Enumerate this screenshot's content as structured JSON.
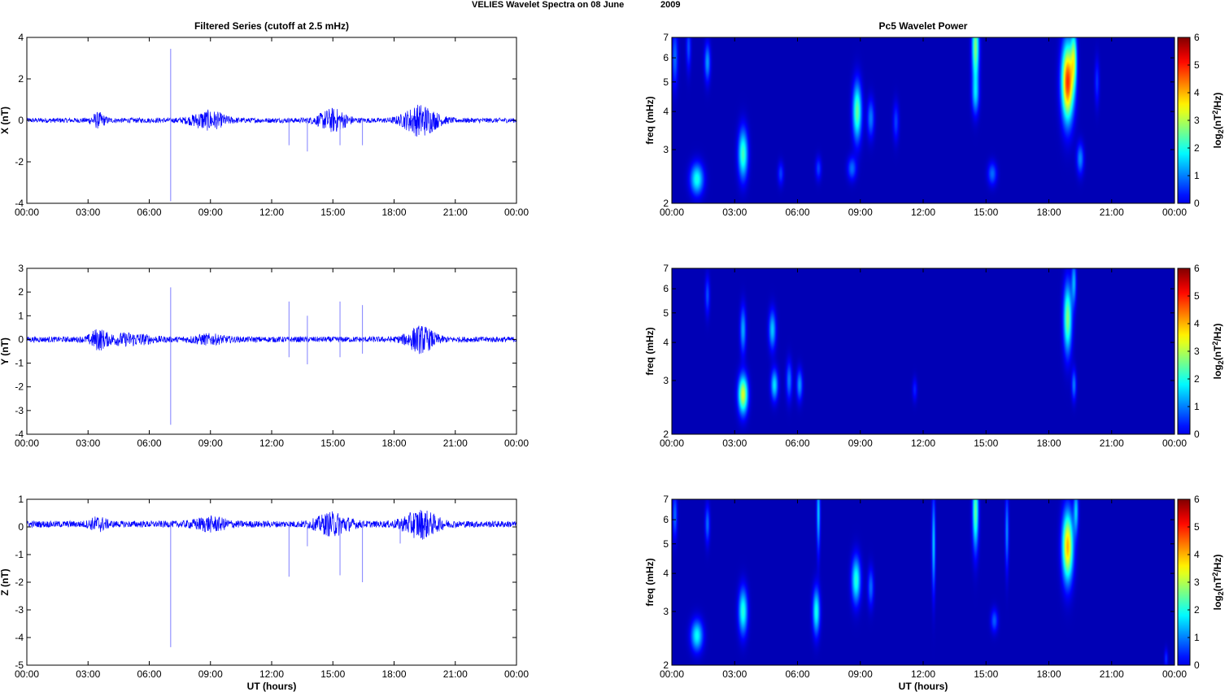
{
  "figure": {
    "suptitle_left": "VELIES Wavelet Spectra on 08 June",
    "suptitle_right": "2009"
  },
  "colors": {
    "trace": "#0000ff",
    "spectrogram_background": "#00008f",
    "colormap": "jet"
  },
  "chart_data": [
    {
      "type": "line",
      "panel": "left-top",
      "title": "Filtered Series (cutoff at 2.5 mHz)",
      "xlabel": "",
      "ylabel": "X (nT)",
      "xlim_hours": [
        0,
        24
      ],
      "ylim": [
        -4,
        4
      ],
      "x_ticks": [
        "00:00",
        "03:00",
        "06:00",
        "09:00",
        "12:00",
        "15:00",
        "18:00",
        "21:00",
        "00:00"
      ],
      "y_ticks": [
        4,
        2,
        0,
        -2,
        -4
      ],
      "baseline_noise_amplitude": 0.12,
      "bursts": [
        {
          "t": 3.5,
          "amp": 0.3,
          "width": 0.25
        },
        {
          "t": 8.9,
          "amp": 0.4,
          "width": 0.6
        },
        {
          "t": 15.0,
          "amp": 0.5,
          "width": 0.5
        },
        {
          "t": 19.3,
          "amp": 0.7,
          "width": 0.6
        }
      ],
      "spikes": [
        {
          "t": 7.05,
          "max": 3.45,
          "min": -3.9
        },
        {
          "t": 12.85,
          "max": 0.1,
          "min": -1.2
        },
        {
          "t": 13.75,
          "max": 0.1,
          "min": -1.5
        },
        {
          "t": 15.35,
          "max": 0.1,
          "min": -1.2
        },
        {
          "t": 16.45,
          "max": 0.1,
          "min": -1.2
        }
      ]
    },
    {
      "type": "line",
      "panel": "left-middle",
      "title": "",
      "xlabel": "",
      "ylabel": "Y (nT)",
      "xlim_hours": [
        0,
        24
      ],
      "ylim": [
        -4,
        3
      ],
      "x_ticks": [
        "00:00",
        "03:00",
        "06:00",
        "09:00",
        "12:00",
        "15:00",
        "18:00",
        "21:00",
        "00:00"
      ],
      "y_ticks": [
        3,
        2,
        1,
        0,
        -1,
        -2,
        -3,
        -4
      ],
      "baseline_noise_amplitude": 0.12,
      "bursts": [
        {
          "t": 3.5,
          "amp": 0.35,
          "width": 0.3
        },
        {
          "t": 5.0,
          "amp": 0.2,
          "width": 0.8
        },
        {
          "t": 8.9,
          "amp": 0.15,
          "width": 0.6
        },
        {
          "t": 19.3,
          "amp": 0.5,
          "width": 0.5
        }
      ],
      "spikes": [
        {
          "t": 7.05,
          "max": 2.2,
          "min": -3.6
        },
        {
          "t": 12.85,
          "max": 1.6,
          "min": -0.75
        },
        {
          "t": 13.75,
          "max": 1.0,
          "min": -1.05
        },
        {
          "t": 15.35,
          "max": 1.6,
          "min": -0.75
        },
        {
          "t": 16.45,
          "max": 1.45,
          "min": -0.6
        }
      ]
    },
    {
      "type": "line",
      "panel": "left-bottom",
      "title": "",
      "xlabel": "UT (hours)",
      "ylabel": "Z (nT)",
      "xlim_hours": [
        0,
        24
      ],
      "ylim": [
        -5,
        1
      ],
      "x_ticks": [
        "00:00",
        "03:00",
        "06:00",
        "09:00",
        "12:00",
        "15:00",
        "18:00",
        "21:00",
        "00:00"
      ],
      "y_ticks": [
        1,
        0,
        -1,
        -2,
        -3,
        -4,
        -5
      ],
      "baseline_offset": 0.1,
      "baseline_noise_amplitude": 0.12,
      "bursts": [
        {
          "t": 3.5,
          "amp": 0.2,
          "width": 0.3
        },
        {
          "t": 9.0,
          "amp": 0.2,
          "width": 0.6
        },
        {
          "t": 15.0,
          "amp": 0.35,
          "width": 0.6
        },
        {
          "t": 19.3,
          "amp": 0.45,
          "width": 0.6
        }
      ],
      "spikes": [
        {
          "t": 7.05,
          "max": 0.2,
          "min": -4.35
        },
        {
          "t": 12.85,
          "max": 0.2,
          "min": -1.8
        },
        {
          "t": 13.75,
          "max": 0.1,
          "min": -0.7
        },
        {
          "t": 15.35,
          "max": 0.2,
          "min": -1.75
        },
        {
          "t": 16.45,
          "max": 0.2,
          "min": -2.0
        },
        {
          "t": 18.3,
          "max": 0.2,
          "min": -0.6
        }
      ]
    },
    {
      "type": "heatmap",
      "panel": "right-top",
      "title": "Pc5 Wavelet Power",
      "xlabel": "",
      "ylabel": "freq (mHz)",
      "xlim_hours": [
        0,
        24
      ],
      "ylim_mhz": [
        2,
        7
      ],
      "y_scale": "log",
      "x_ticks": [
        "00:00",
        "03:00",
        "06:00",
        "09:00",
        "12:00",
        "15:00",
        "18:00",
        "21:00",
        "00:00"
      ],
      "y_ticks": [
        7,
        6,
        5,
        4,
        3,
        2
      ],
      "colorbar": {
        "label_base": "log",
        "label_sub1": "2",
        "label_mid": "(nT",
        "label_sup": "2",
        "label_end": "/Hz)",
        "ticks": [
          6,
          5,
          4,
          3,
          2,
          1,
          0
        ],
        "range": [
          0,
          6
        ]
      },
      "blobs": [
        {
          "t": 0.15,
          "f": 6.0,
          "dt": 0.1,
          "df": 0.15,
          "v": 1.2
        },
        {
          "t": 0.8,
          "f": 6.5,
          "dt": 0.08,
          "df": 0.12,
          "v": 1.0
        },
        {
          "t": 1.2,
          "f": 2.4,
          "dt": 0.22,
          "df": 0.08,
          "v": 2.3
        },
        {
          "t": 1.7,
          "f": 5.8,
          "dt": 0.1,
          "df": 0.1,
          "v": 1.5
        },
        {
          "t": 3.4,
          "f": 2.9,
          "dt": 0.16,
          "df": 0.13,
          "v": 2.6
        },
        {
          "t": 5.2,
          "f": 2.5,
          "dt": 0.1,
          "df": 0.06,
          "v": 0.9
        },
        {
          "t": 7.0,
          "f": 2.6,
          "dt": 0.1,
          "df": 0.06,
          "v": 0.9
        },
        {
          "t": 8.6,
          "f": 2.6,
          "dt": 0.15,
          "df": 0.06,
          "v": 1.2
        },
        {
          "t": 8.85,
          "f": 4.0,
          "dt": 0.15,
          "df": 0.15,
          "v": 2.8
        },
        {
          "t": 9.5,
          "f": 3.8,
          "dt": 0.12,
          "df": 0.1,
          "v": 1.3
        },
        {
          "t": 10.7,
          "f": 3.7,
          "dt": 0.1,
          "df": 0.1,
          "v": 0.9
        },
        {
          "t": 14.5,
          "f": 6.5,
          "dt": 0.12,
          "df": 0.2,
          "v": 3.0
        },
        {
          "t": 14.5,
          "f": 4.5,
          "dt": 0.12,
          "df": 0.1,
          "v": 1.4
        },
        {
          "t": 15.3,
          "f": 2.5,
          "dt": 0.15,
          "df": 0.06,
          "v": 1.2
        },
        {
          "t": 18.9,
          "f": 5.0,
          "dt": 0.2,
          "df": 0.2,
          "v": 5.2
        },
        {
          "t": 19.2,
          "f": 6.0,
          "dt": 0.1,
          "df": 0.15,
          "v": 2.5
        },
        {
          "t": 19.5,
          "f": 2.8,
          "dt": 0.12,
          "df": 0.08,
          "v": 1.4
        },
        {
          "t": 20.3,
          "f": 5.0,
          "dt": 0.08,
          "df": 0.12,
          "v": 0.8
        }
      ]
    },
    {
      "type": "heatmap",
      "panel": "right-middle",
      "title": "",
      "xlabel": "",
      "ylabel": "freq (mHz)",
      "xlim_hours": [
        0,
        24
      ],
      "ylim_mhz": [
        2,
        7
      ],
      "y_scale": "log",
      "x_ticks": [
        "00:00",
        "03:00",
        "06:00",
        "09:00",
        "12:00",
        "15:00",
        "18:00",
        "21:00",
        "00:00"
      ],
      "y_ticks": [
        7,
        6,
        5,
        4,
        3,
        2
      ],
      "colorbar": {
        "label_base": "log",
        "label_sub1": "2",
        "label_mid": "(nT",
        "label_sup": "2",
        "label_end": "/Hz)",
        "ticks": [
          6,
          5,
          4,
          3,
          2,
          1,
          0
        ],
        "range": [
          0,
          6
        ]
      },
      "blobs": [
        {
          "t": 1.7,
          "f": 5.7,
          "dt": 0.08,
          "df": 0.1,
          "v": 1.0
        },
        {
          "t": 3.4,
          "f": 2.7,
          "dt": 0.16,
          "df": 0.1,
          "v": 3.6
        },
        {
          "t": 3.4,
          "f": 4.4,
          "dt": 0.1,
          "df": 0.12,
          "v": 1.6
        },
        {
          "t": 4.8,
          "f": 4.4,
          "dt": 0.12,
          "df": 0.1,
          "v": 1.8
        },
        {
          "t": 4.9,
          "f": 2.9,
          "dt": 0.12,
          "df": 0.08,
          "v": 2.0
        },
        {
          "t": 5.6,
          "f": 3.0,
          "dt": 0.1,
          "df": 0.1,
          "v": 1.3
        },
        {
          "t": 6.1,
          "f": 2.9,
          "dt": 0.1,
          "df": 0.08,
          "v": 1.5
        },
        {
          "t": 11.6,
          "f": 2.8,
          "dt": 0.08,
          "df": 0.06,
          "v": 0.7
        },
        {
          "t": 18.9,
          "f": 4.8,
          "dt": 0.14,
          "df": 0.18,
          "v": 3.0
        },
        {
          "t": 19.2,
          "f": 6.3,
          "dt": 0.08,
          "df": 0.12,
          "v": 1.6
        },
        {
          "t": 19.2,
          "f": 2.9,
          "dt": 0.08,
          "df": 0.08,
          "v": 1.3
        }
      ]
    },
    {
      "type": "heatmap",
      "panel": "right-bottom",
      "title": "",
      "xlabel": "UT (hours)",
      "ylabel": "freq (mHz)",
      "xlim_hours": [
        0,
        24
      ],
      "ylim_mhz": [
        2,
        7
      ],
      "y_scale": "log",
      "x_ticks": [
        "00:00",
        "03:00",
        "06:00",
        "09:00",
        "12:00",
        "15:00",
        "18:00",
        "21:00",
        "00:00"
      ],
      "y_ticks": [
        7,
        6,
        5,
        4,
        3,
        2
      ],
      "colorbar": {
        "label_base": "log",
        "label_sub1": "2",
        "label_mid": "(nT",
        "label_sup": "2",
        "label_end": "/Hz)",
        "ticks": [
          6,
          5,
          4,
          3,
          2,
          1,
          0
        ],
        "range": [
          0,
          6
        ]
      },
      "blobs": [
        {
          "t": 0.15,
          "f": 6.2,
          "dt": 0.08,
          "df": 0.12,
          "v": 1.2
        },
        {
          "t": 1.2,
          "f": 2.5,
          "dt": 0.2,
          "df": 0.08,
          "v": 2.2
        },
        {
          "t": 1.7,
          "f": 5.8,
          "dt": 0.08,
          "df": 0.1,
          "v": 1.2
        },
        {
          "t": 3.4,
          "f": 3.0,
          "dt": 0.15,
          "df": 0.12,
          "v": 2.4
        },
        {
          "t": 6.9,
          "f": 3.0,
          "dt": 0.12,
          "df": 0.12,
          "v": 2.3
        },
        {
          "t": 7.0,
          "f": 6.3,
          "dt": 0.06,
          "df": 0.2,
          "v": 1.8
        },
        {
          "t": 8.8,
          "f": 3.8,
          "dt": 0.15,
          "df": 0.12,
          "v": 2.4
        },
        {
          "t": 9.5,
          "f": 3.6,
          "dt": 0.1,
          "df": 0.1,
          "v": 1.2
        },
        {
          "t": 12.5,
          "f": 5.0,
          "dt": 0.06,
          "df": 0.25,
          "v": 1.8
        },
        {
          "t": 14.5,
          "f": 6.4,
          "dt": 0.1,
          "df": 0.2,
          "v": 2.8
        },
        {
          "t": 15.4,
          "f": 2.8,
          "dt": 0.12,
          "df": 0.06,
          "v": 1.1
        },
        {
          "t": 16.0,
          "f": 5.5,
          "dt": 0.06,
          "df": 0.2,
          "v": 1.4
        },
        {
          "t": 18.9,
          "f": 4.9,
          "dt": 0.18,
          "df": 0.18,
          "v": 4.3
        },
        {
          "t": 19.3,
          "f": 6.4,
          "dt": 0.08,
          "df": 0.12,
          "v": 1.8
        },
        {
          "t": 23.6,
          "f": 2.1,
          "dt": 0.06,
          "df": 0.05,
          "v": 0.8
        }
      ]
    }
  ]
}
